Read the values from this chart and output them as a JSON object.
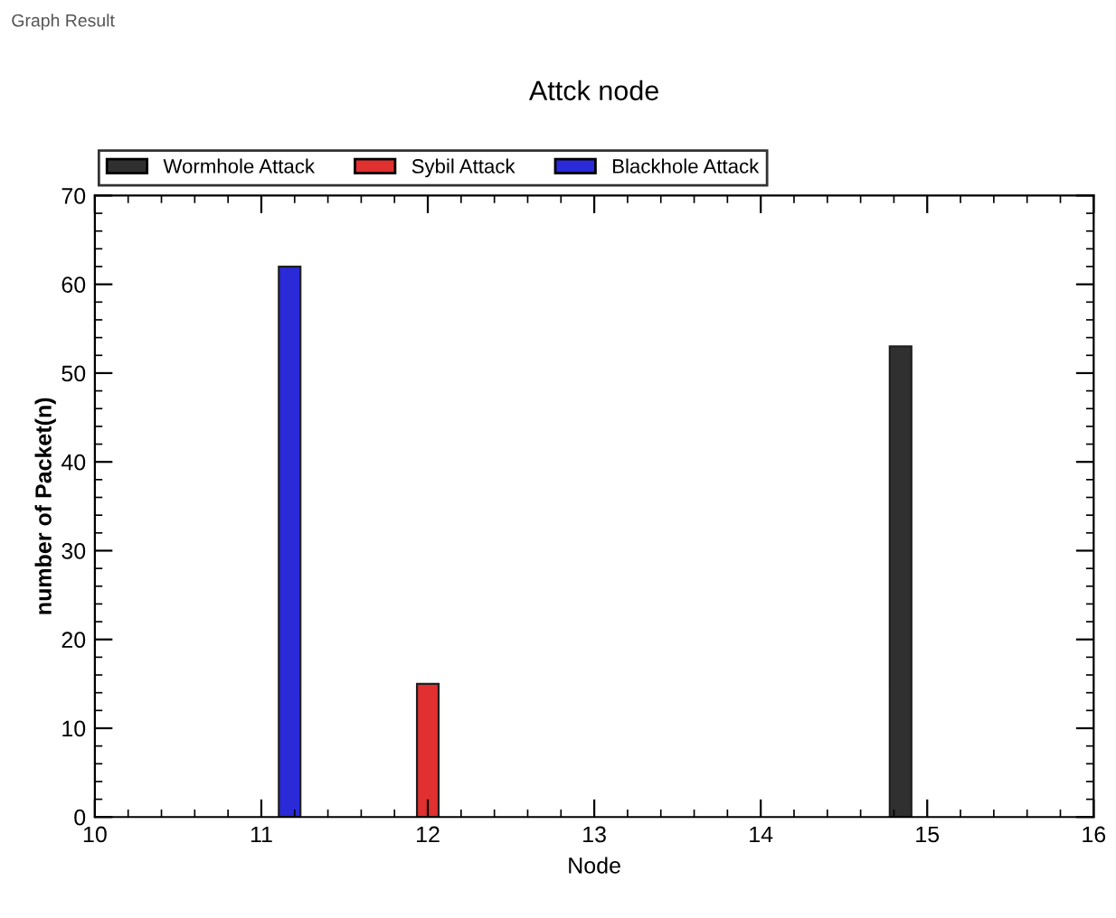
{
  "chart_data": {
    "type": "bar",
    "title": "Attck node",
    "xlabel": "Node",
    "ylabel": "number of Packet(n)",
    "annotations": [
      "Graph Result"
    ],
    "series": [
      {
        "name": "Wormhole Attack",
        "color": "#303030",
        "x": [
          14.84
        ],
        "values": [
          53
        ]
      },
      {
        "name": "Sybil Attack",
        "color": "#e03030",
        "x": [
          12.0
        ],
        "values": [
          15
        ]
      },
      {
        "name": "Blackhole Attack",
        "color": "#2a2ad8",
        "x": [
          11.17
        ],
        "values": [
          62
        ]
      }
    ],
    "xlim": [
      10,
      16
    ],
    "xticks": [
      10,
      11,
      12,
      13,
      14,
      15,
      16
    ],
    "ylim": [
      0,
      70
    ],
    "yticks": [
      0,
      10,
      20,
      30,
      40,
      50,
      60,
      70
    ],
    "grid": false,
    "legend": "top left"
  }
}
